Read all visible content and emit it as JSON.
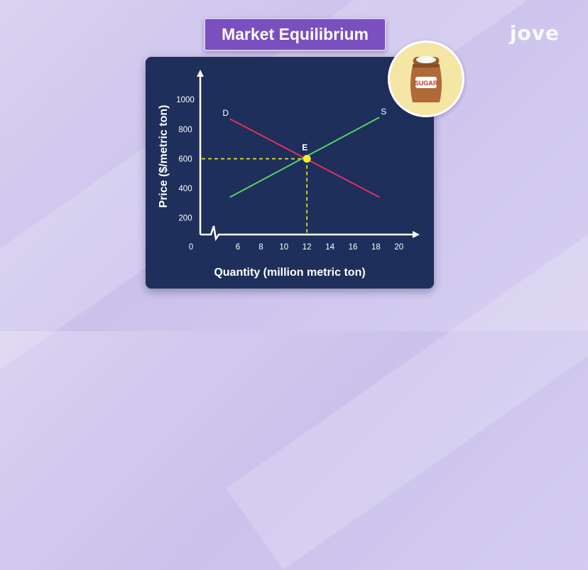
{
  "title": "Market Equilibrium",
  "logo": "jove",
  "icon": {
    "name": "sugar-bag-icon",
    "label": "SUGAR"
  },
  "colors": {
    "demand": "#e0325f",
    "supply": "#55d26a",
    "equilibrium": "#f4ec2a",
    "axis": "#ffffff",
    "panel": "#1d2f5a",
    "title_bg": "#7a4fc0"
  },
  "chart_data": {
    "type": "line",
    "xlabel": "Quantity (million metric ton)",
    "ylabel": "Price ($/metric ton)",
    "origin_label": "0",
    "x_ticks": [
      "6",
      "8",
      "10",
      "12",
      "14",
      "16",
      "18",
      "20"
    ],
    "y_ticks": [
      "200",
      "400",
      "600",
      "800",
      "1000"
    ],
    "xlim": [
      4,
      21
    ],
    "ylim": [
      100,
      1100
    ],
    "series": [
      {
        "name": "D",
        "x": [
          5.3,
          18.3
        ],
        "y": [
          870,
          340
        ]
      },
      {
        "name": "S",
        "x": [
          5.3,
          18.3
        ],
        "y": [
          340,
          880
        ]
      }
    ],
    "equilibrium": {
      "label": "E",
      "x": 12,
      "y": 600
    }
  }
}
